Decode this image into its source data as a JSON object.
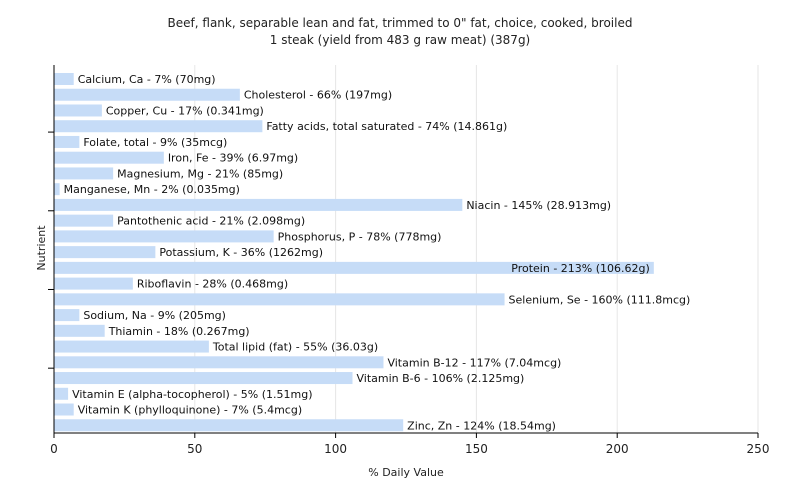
{
  "chart_data": {
    "type": "bar",
    "orientation": "horizontal",
    "title": "Beef, flank, separable lean and fat, trimmed to 0\" fat, choice, cooked, broiled",
    "subtitle": "1 steak (yield from 483 g raw meat) (387g)",
    "xlabel": "% Daily Value",
    "ylabel": "Nutrient",
    "xlim": [
      0,
      250
    ],
    "xticks": [
      0,
      50,
      100,
      150,
      200,
      250
    ],
    "grid": "vertical",
    "bar_color": "#c6dcf7",
    "bars": [
      {
        "name": "Calcium, Ca",
        "value": 7,
        "label": "Calcium, Ca - 7% (70mg)"
      },
      {
        "name": "Cholesterol",
        "value": 66,
        "label": "Cholesterol - 66% (197mg)"
      },
      {
        "name": "Copper, Cu",
        "value": 17,
        "label": "Copper, Cu - 17% (0.341mg)"
      },
      {
        "name": "Fatty acids, total saturated",
        "value": 74,
        "label": "Fatty acids, total saturated - 74% (14.861g)"
      },
      {
        "name": "Folate, total",
        "value": 9,
        "label": "Folate, total - 9% (35mcg)"
      },
      {
        "name": "Iron, Fe",
        "value": 39,
        "label": "Iron, Fe - 39% (6.97mg)"
      },
      {
        "name": "Magnesium, Mg",
        "value": 21,
        "label": "Magnesium, Mg - 21% (85mg)"
      },
      {
        "name": "Manganese, Mn",
        "value": 2,
        "label": "Manganese, Mn - 2% (0.035mg)"
      },
      {
        "name": "Niacin",
        "value": 145,
        "label": "Niacin - 145% (28.913mg)"
      },
      {
        "name": "Pantothenic acid",
        "value": 21,
        "label": "Pantothenic acid - 21% (2.098mg)"
      },
      {
        "name": "Phosphorus, P",
        "value": 78,
        "label": "Phosphorus, P - 78% (778mg)"
      },
      {
        "name": "Potassium, K",
        "value": 36,
        "label": "Potassium, K - 36% (1262mg)"
      },
      {
        "name": "Protein",
        "value": 213,
        "label": "Protein - 213% (106.62g)"
      },
      {
        "name": "Riboflavin",
        "value": 28,
        "label": "Riboflavin - 28% (0.468mg)"
      },
      {
        "name": "Selenium, Se",
        "value": 160,
        "label": "Selenium, Se - 160% (111.8mcg)"
      },
      {
        "name": "Sodium, Na",
        "value": 9,
        "label": "Sodium, Na - 9% (205mg)"
      },
      {
        "name": "Thiamin",
        "value": 18,
        "label": "Thiamin - 18% (0.267mg)"
      },
      {
        "name": "Total lipid (fat)",
        "value": 55,
        "label": "Total lipid (fat) - 55% (36.03g)"
      },
      {
        "name": "Vitamin B-12",
        "value": 117,
        "label": "Vitamin B-12 - 117% (7.04mcg)"
      },
      {
        "name": "Vitamin B-6",
        "value": 106,
        "label": "Vitamin B-6 - 106% (2.125mg)"
      },
      {
        "name": "Vitamin E (alpha-tocopherol)",
        "value": 5,
        "label": "Vitamin E (alpha-tocopherol) - 5% (1.51mg)"
      },
      {
        "name": "Vitamin K (phylloquinone)",
        "value": 7,
        "label": "Vitamin K (phylloquinone) - 7% (5.4mcg)"
      },
      {
        "name": "Zinc, Zn",
        "value": 124,
        "label": "Zinc, Zn - 124% (18.54mg)"
      }
    ]
  }
}
